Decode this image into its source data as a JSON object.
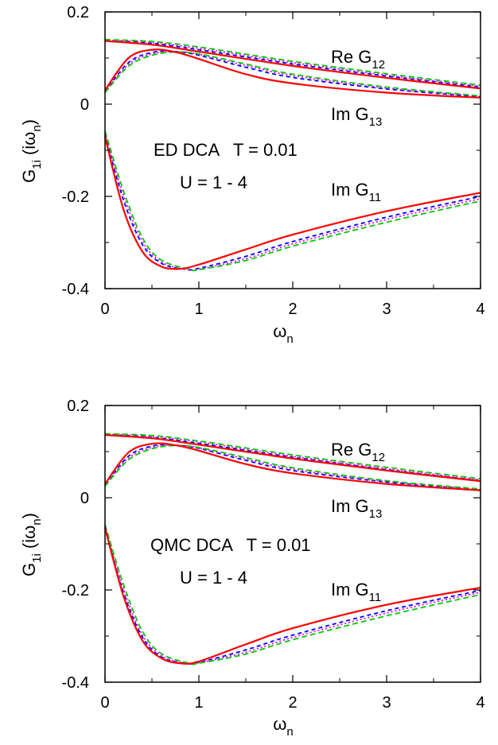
{
  "chart_data": [
    {
      "type": "line",
      "xlabel": "ω",
      "xlabel_sub": "n",
      "ylabel": "G",
      "ylabel_sub": "1i",
      "ylabel_arg": " (iω",
      "ylabel_arg_sub": "n",
      "ylabel_close": ")",
      "xlim": [
        0,
        4
      ],
      "ylim": [
        -0.4,
        0.2
      ],
      "xticks": [
        "0",
        "1",
        "2",
        "3",
        "4"
      ],
      "yticks": [
        "0.2",
        "0",
        "-0.2",
        "-0.4"
      ],
      "annotations": {
        "method": "ED DCA   T = 0.01",
        "interaction": "U = 1 - 4",
        "re12": "Re G",
        "re12_sub": "12",
        "im13": "Im G",
        "im13_sub": "13",
        "im11": "Im G",
        "im11_sub": "11"
      },
      "series": [
        {
          "group": "Re G12",
          "color": "#ff0000",
          "values": [
            [
              0,
              0.137
            ],
            [
              0.5,
              0.129
            ],
            [
              1,
              0.114
            ],
            [
              2,
              0.083
            ],
            [
              3,
              0.057
            ],
            [
              4,
              0.034
            ]
          ]
        },
        {
          "group": "Re G12",
          "color": "#0000ff",
          "values": [
            [
              0,
              0.138
            ],
            [
              0.5,
              0.132
            ],
            [
              1,
              0.118
            ],
            [
              2,
              0.087
            ],
            [
              3,
              0.061
            ],
            [
              4,
              0.037
            ]
          ]
        },
        {
          "group": "Re G12",
          "color": "#ff00ff",
          "values": [
            [
              0,
              0.139
            ],
            [
              0.5,
              0.134
            ],
            [
              1,
              0.121
            ],
            [
              2,
              0.09
            ],
            [
              3,
              0.063
            ],
            [
              4,
              0.039
            ]
          ]
        },
        {
          "group": "Re G12",
          "color": "#00cc00",
          "values": [
            [
              0,
              0.14
            ],
            [
              0.5,
              0.136
            ],
            [
              1,
              0.124
            ],
            [
              2,
              0.093
            ],
            [
              3,
              0.066
            ],
            [
              4,
              0.041
            ]
          ]
        },
        {
          "group": "Im G13",
          "color": "#ff0000",
          "values": [
            [
              0,
              0.03
            ],
            [
              0.25,
              0.1
            ],
            [
              0.5,
              0.118
            ],
            [
              0.75,
              0.113
            ],
            [
              1,
              0.098
            ],
            [
              1.5,
              0.065
            ],
            [
              2,
              0.045
            ],
            [
              3,
              0.025
            ],
            [
              4,
              0.014
            ]
          ]
        },
        {
          "group": "Im G13",
          "color": "#0000ff",
          "values": [
            [
              0,
              0.027
            ],
            [
              0.25,
              0.09
            ],
            [
              0.5,
              0.112
            ],
            [
              0.75,
              0.114
            ],
            [
              1,
              0.106
            ],
            [
              1.5,
              0.08
            ],
            [
              2,
              0.058
            ],
            [
              3,
              0.033
            ],
            [
              4,
              0.016
            ]
          ]
        },
        {
          "group": "Im G13",
          "color": "#ff00ff",
          "values": [
            [
              0,
              0.026
            ],
            [
              0.25,
              0.086
            ],
            [
              0.5,
              0.109
            ],
            [
              0.75,
              0.114
            ],
            [
              1,
              0.108
            ],
            [
              1.5,
              0.084
            ],
            [
              2,
              0.062
            ],
            [
              3,
              0.035
            ],
            [
              4,
              0.017
            ]
          ]
        },
        {
          "group": "Im G13",
          "color": "#00cc00",
          "values": [
            [
              0,
              0.025
            ],
            [
              0.25,
              0.082
            ],
            [
              0.5,
              0.106
            ],
            [
              0.75,
              0.113
            ],
            [
              1,
              0.109
            ],
            [
              1.5,
              0.087
            ],
            [
              2,
              0.065
            ],
            [
              3,
              0.037
            ],
            [
              4,
              0.018
            ]
          ]
        },
        {
          "group": "Im G11",
          "color": "#ff0000",
          "values": [
            [
              0,
              -0.07
            ],
            [
              0.2,
              -0.23
            ],
            [
              0.4,
              -0.32
            ],
            [
              0.6,
              -0.352
            ],
            [
              0.8,
              -0.357
            ],
            [
              1.0,
              -0.348
            ],
            [
              1.5,
              -0.315
            ],
            [
              2,
              -0.283
            ],
            [
              3,
              -0.232
            ],
            [
              4,
              -0.192
            ]
          ]
        },
        {
          "group": "Im G11",
          "color": "#0000ff",
          "values": [
            [
              0,
              -0.065
            ],
            [
              0.2,
              -0.21
            ],
            [
              0.4,
              -0.305
            ],
            [
              0.6,
              -0.345
            ],
            [
              0.85,
              -0.358
            ],
            [
              1.0,
              -0.356
            ],
            [
              1.5,
              -0.33
            ],
            [
              2,
              -0.298
            ],
            [
              3,
              -0.245
            ],
            [
              4,
              -0.2
            ]
          ]
        },
        {
          "group": "Im G11",
          "color": "#ff00ff",
          "values": [
            [
              0,
              -0.062
            ],
            [
              0.2,
              -0.2
            ],
            [
              0.4,
              -0.298
            ],
            [
              0.6,
              -0.342
            ],
            [
              0.85,
              -0.358
            ],
            [
              1.0,
              -0.358
            ],
            [
              1.5,
              -0.335
            ],
            [
              2,
              -0.303
            ],
            [
              3,
              -0.25
            ],
            [
              4,
              -0.205
            ]
          ]
        },
        {
          "group": "Im G11",
          "color": "#00cc00",
          "values": [
            [
              0,
              -0.058
            ],
            [
              0.2,
              -0.19
            ],
            [
              0.4,
              -0.29
            ],
            [
              0.6,
              -0.338
            ],
            [
              0.9,
              -0.358
            ],
            [
              1.0,
              -0.359
            ],
            [
              1.5,
              -0.339
            ],
            [
              2,
              -0.308
            ],
            [
              3,
              -0.256
            ],
            [
              4,
              -0.21
            ]
          ]
        }
      ]
    },
    {
      "type": "line",
      "xlabel": "ω",
      "xlabel_sub": "n",
      "ylabel": "G",
      "ylabel_sub": "1i",
      "ylabel_arg": " (iω",
      "ylabel_arg_sub": "n",
      "ylabel_close": ")",
      "xlim": [
        0,
        4
      ],
      "ylim": [
        -0.4,
        0.2
      ],
      "xticks": [
        "0",
        "1",
        "2",
        "3",
        "4"
      ],
      "yticks": [
        "0.2",
        "0",
        "-0.2",
        "-0.4"
      ],
      "annotations": {
        "method": "QMC DCA   T = 0.01",
        "interaction": "U = 1 - 4",
        "re12": "Re G",
        "re12_sub": "12",
        "im13": "Im G",
        "im13_sub": "13",
        "im11": "Im G",
        "im11_sub": "11"
      },
      "series": [
        {
          "group": "Re G12",
          "color": "#ff0000",
          "values": [
            [
              0,
              0.136
            ],
            [
              0.5,
              0.129
            ],
            [
              1,
              0.115
            ],
            [
              2,
              0.085
            ],
            [
              3,
              0.059
            ],
            [
              4,
              0.036
            ]
          ]
        },
        {
          "group": "Re G12",
          "color": "#0000ff",
          "values": [
            [
              0,
              0.137
            ],
            [
              0.5,
              0.131
            ],
            [
              1,
              0.118
            ],
            [
              2,
              0.088
            ],
            [
              3,
              0.061
            ],
            [
              4,
              0.037
            ]
          ]
        },
        {
          "group": "Re G12",
          "color": "#ff00ff",
          "values": [
            [
              0,
              0.138
            ],
            [
              0.5,
              0.133
            ],
            [
              1,
              0.121
            ],
            [
              2,
              0.09
            ],
            [
              3,
              0.063
            ],
            [
              4,
              0.039
            ]
          ]
        },
        {
          "group": "Re G12",
          "color": "#00cc00",
          "values": [
            [
              0,
              0.139
            ],
            [
              0.5,
              0.135
            ],
            [
              1,
              0.123
            ],
            [
              2,
              0.093
            ],
            [
              3,
              0.066
            ],
            [
              4,
              0.041
            ]
          ]
        },
        {
          "group": "Im G13",
          "color": "#ff0000",
          "values": [
            [
              0,
              0.03
            ],
            [
              0.25,
              0.098
            ],
            [
              0.5,
              0.117
            ],
            [
              0.75,
              0.114
            ],
            [
              1,
              0.102
            ],
            [
              1.5,
              0.073
            ],
            [
              2,
              0.053
            ],
            [
              3,
              0.03
            ],
            [
              4,
              0.016
            ]
          ]
        },
        {
          "group": "Im G13",
          "color": "#0000ff",
          "values": [
            [
              0,
              0.027
            ],
            [
              0.25,
              0.09
            ],
            [
              0.5,
              0.112
            ],
            [
              0.75,
              0.114
            ],
            [
              1,
              0.107
            ],
            [
              1.5,
              0.081
            ],
            [
              2,
              0.059
            ],
            [
              3,
              0.034
            ],
            [
              4,
              0.017
            ]
          ]
        },
        {
          "group": "Im G13",
          "color": "#ff00ff",
          "values": [
            [
              0,
              0.026
            ],
            [
              0.25,
              0.086
            ],
            [
              0.5,
              0.109
            ],
            [
              0.75,
              0.114
            ],
            [
              1,
              0.108
            ],
            [
              1.5,
              0.084
            ],
            [
              2,
              0.062
            ],
            [
              3,
              0.035
            ],
            [
              4,
              0.018
            ]
          ]
        },
        {
          "group": "Im G13",
          "color": "#00cc00",
          "values": [
            [
              0,
              0.025
            ],
            [
              0.25,
              0.082
            ],
            [
              0.5,
              0.106
            ],
            [
              0.75,
              0.113
            ],
            [
              1,
              0.109
            ],
            [
              1.5,
              0.087
            ],
            [
              2,
              0.065
            ],
            [
              3,
              0.037
            ],
            [
              4,
              0.019
            ]
          ]
        },
        {
          "group": "Im G11",
          "color": "#ff0000",
          "values": [
            [
              0,
              -0.065
            ],
            [
              0.2,
              -0.215
            ],
            [
              0.4,
              -0.31
            ],
            [
              0.6,
              -0.348
            ],
            [
              0.8,
              -0.359
            ],
            [
              1.0,
              -0.355
            ],
            [
              1.5,
              -0.318
            ],
            [
              2,
              -0.283
            ],
            [
              3,
              -0.232
            ],
            [
              4,
              -0.195
            ]
          ]
        },
        {
          "group": "Im G11",
          "color": "#0000ff",
          "values": [
            [
              0,
              -0.063
            ],
            [
              0.2,
              -0.207
            ],
            [
              0.4,
              -0.303
            ],
            [
              0.6,
              -0.345
            ],
            [
              0.85,
              -0.359
            ],
            [
              1.0,
              -0.357
            ],
            [
              1.5,
              -0.33
            ],
            [
              2,
              -0.298
            ],
            [
              3,
              -0.245
            ],
            [
              4,
              -0.201
            ]
          ]
        },
        {
          "group": "Im G11",
          "color": "#ff00ff",
          "values": [
            [
              0,
              -0.061
            ],
            [
              0.2,
              -0.2
            ],
            [
              0.4,
              -0.298
            ],
            [
              0.6,
              -0.342
            ],
            [
              0.85,
              -0.359
            ],
            [
              1.0,
              -0.358
            ],
            [
              1.5,
              -0.335
            ],
            [
              2,
              -0.303
            ],
            [
              3,
              -0.25
            ],
            [
              4,
              -0.205
            ]
          ]
        },
        {
          "group": "Im G11",
          "color": "#00cc00",
          "values": [
            [
              0,
              -0.058
            ],
            [
              0.2,
              -0.19
            ],
            [
              0.4,
              -0.29
            ],
            [
              0.6,
              -0.338
            ],
            [
              0.9,
              -0.359
            ],
            [
              1.0,
              -0.359
            ],
            [
              1.5,
              -0.339
            ],
            [
              2,
              -0.308
            ],
            [
              3,
              -0.256
            ],
            [
              4,
              -0.21
            ]
          ]
        }
      ]
    }
  ]
}
